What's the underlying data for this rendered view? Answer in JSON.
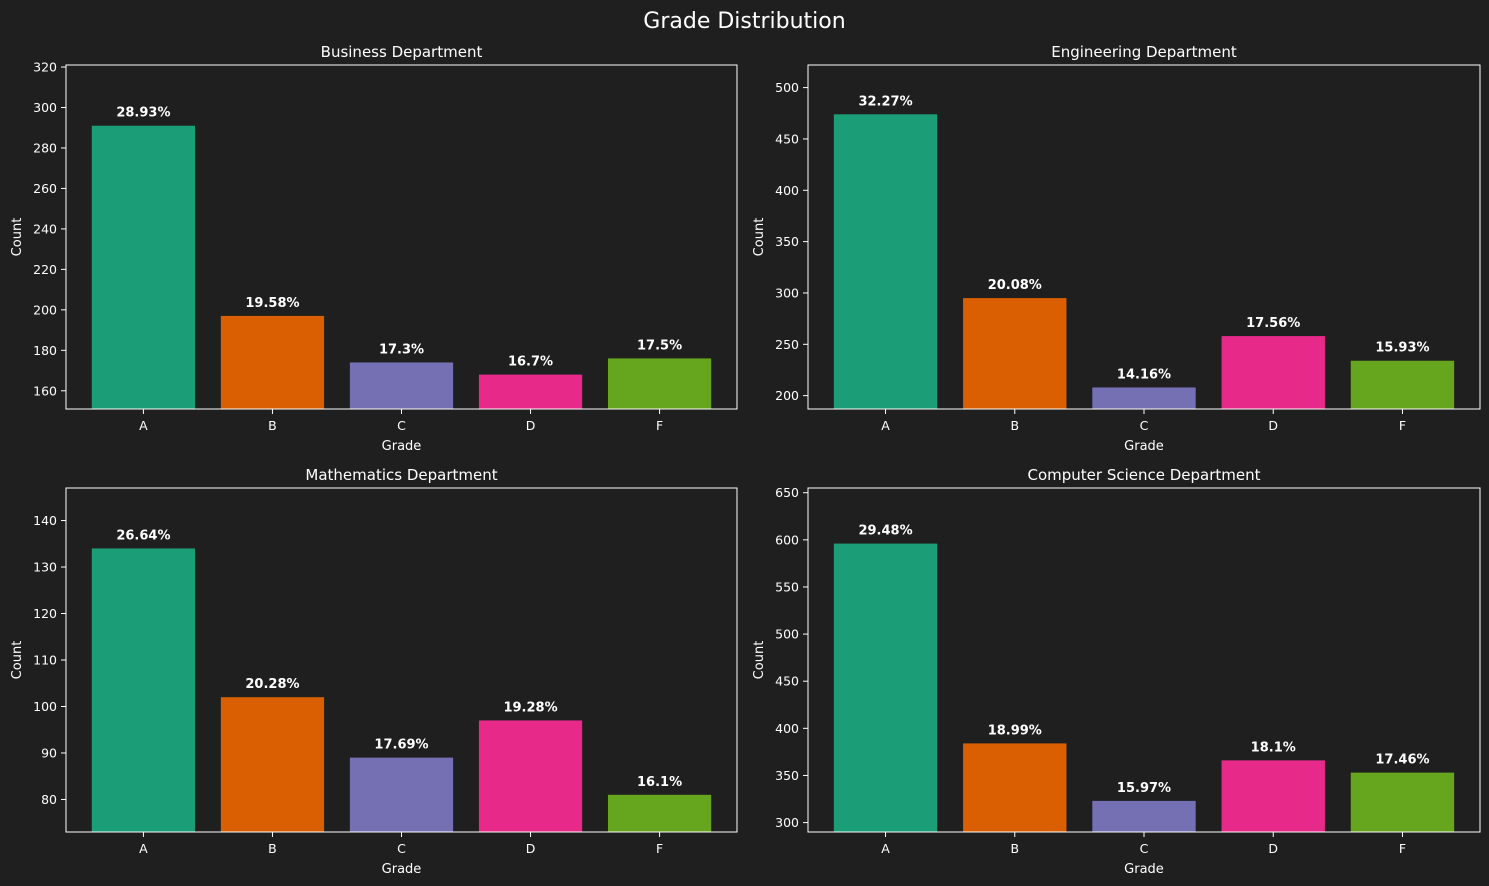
{
  "figure": {
    "title": "Grade Distribution"
  },
  "colors": {
    "background": "#1f1f1f",
    "axes": "#ffffff",
    "text": "#ffffff",
    "bars": [
      "#1b9e77",
      "#d95f02",
      "#7570b3",
      "#e7298a",
      "#66a61e"
    ]
  },
  "chart_data": [
    {
      "type": "bar",
      "title": "Business Department",
      "xlabel": "Grade",
      "ylabel": "Count",
      "categories": [
        "A",
        "B",
        "C",
        "D",
        "F"
      ],
      "values": [
        291,
        197,
        174,
        168,
        176
      ],
      "labels": [
        "28.93%",
        "19.58%",
        "17.3%",
        "16.7%",
        "17.5%"
      ],
      "ylim": [
        151,
        321
      ],
      "yticks": [
        160,
        180,
        200,
        220,
        240,
        260,
        280,
        300,
        320
      ]
    },
    {
      "type": "bar",
      "title": "Engineering Department",
      "xlabel": "Grade",
      "ylabel": "Count",
      "categories": [
        "A",
        "B",
        "C",
        "D",
        "F"
      ],
      "values": [
        474,
        295,
        208,
        258,
        234
      ],
      "labels": [
        "32.27%",
        "20.08%",
        "14.16%",
        "17.56%",
        "15.93%"
      ],
      "ylim": [
        187,
        522
      ],
      "yticks": [
        200,
        250,
        300,
        350,
        400,
        450,
        500
      ]
    },
    {
      "type": "bar",
      "title": "Mathematics Department",
      "xlabel": "Grade",
      "ylabel": "Count",
      "categories": [
        "A",
        "B",
        "C",
        "D",
        "F"
      ],
      "values": [
        134,
        102,
        89,
        97,
        81
      ],
      "labels": [
        "26.64%",
        "20.28%",
        "17.69%",
        "19.28%",
        "16.1%"
      ],
      "ylim": [
        73,
        147
      ],
      "yticks": [
        80,
        90,
        100,
        110,
        120,
        130,
        140
      ]
    },
    {
      "type": "bar",
      "title": "Computer Science Department",
      "xlabel": "Grade",
      "ylabel": "Count",
      "categories": [
        "A",
        "B",
        "C",
        "D",
        "F"
      ],
      "values": [
        596,
        384,
        323,
        366,
        353
      ],
      "labels": [
        "29.48%",
        "18.99%",
        "15.97%",
        "18.1%",
        "17.46%"
      ],
      "ylim": [
        290,
        655
      ],
      "yticks": [
        300,
        350,
        400,
        450,
        500,
        550,
        600,
        650
      ]
    }
  ]
}
